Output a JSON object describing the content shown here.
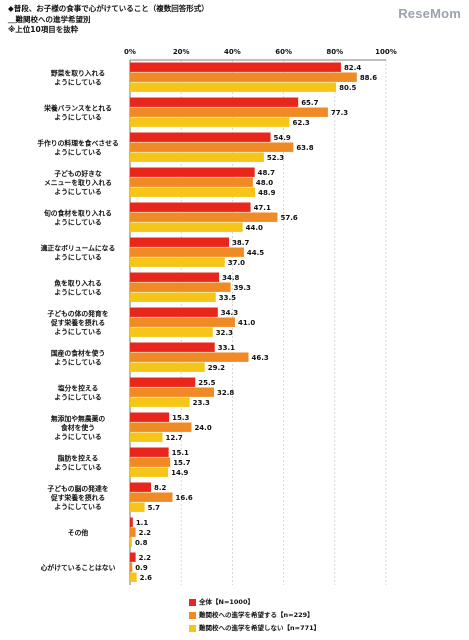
{
  "header": {
    "line1": "◆普段、お子様の食事で心がけていること（複数回答形式）",
    "line2": "＿難関校への進学希望別",
    "line3": "※上位10項目を抜粋"
  },
  "logo": "ReseMom",
  "colors": {
    "all": "#e8261b",
    "wish": "#f08a24",
    "nowish": "#f5c518",
    "grid": "#c8c8c8"
  },
  "chart_data": {
    "type": "bar",
    "orientation": "horizontal",
    "xlim": [
      0,
      100
    ],
    "ticks": [
      "0%",
      "20%",
      "40%",
      "60%",
      "80%",
      "100%"
    ],
    "categories": [
      [
        "野菜を取り入れる",
        "ようにしている"
      ],
      [
        "栄養バランスをとれる",
        "ようにしている"
      ],
      [
        "手作りの料理を食べさせる",
        "ようにしている"
      ],
      [
        "子どもの好きな",
        "メニューを取り入れる",
        "ようにしている"
      ],
      [
        "旬の食材を取り入れる",
        "ようにしている"
      ],
      [
        "適正なボリュームになる",
        "ようにしている"
      ],
      [
        "魚を取り入れる",
        "ようにしている"
      ],
      [
        "子どもの体の発育を",
        "促す栄養を摂れる",
        "ようにしている"
      ],
      [
        "国産の食材を使う",
        "ようにしている"
      ],
      [
        "塩分を控える",
        "ようにしている"
      ],
      [
        "無添加や無農薬の",
        "食材を使う",
        "ようにしている"
      ],
      [
        "脂肪を控える",
        "ようにしている"
      ],
      [
        "子どもの脳の発達を",
        "促す栄養を摂れる",
        "ようにしている"
      ],
      [
        "その他"
      ],
      [
        "心がけていることはない"
      ]
    ],
    "series": [
      {
        "name": "全体【N=1000】",
        "values": [
          82.4,
          65.7,
          54.9,
          48.7,
          47.1,
          38.7,
          34.8,
          34.3,
          33.1,
          25.5,
          15.3,
          15.1,
          8.2,
          1.1,
          2.2
        ]
      },
      {
        "name": "難関校への進学を希望する【n=229】",
        "values": [
          88.6,
          77.3,
          63.8,
          48.0,
          57.6,
          44.5,
          39.3,
          41.0,
          46.3,
          32.8,
          24.0,
          15.7,
          16.6,
          2.2,
          0.9
        ]
      },
      {
        "name": "難関校への進学を希望しない【n=771】",
        "values": [
          80.5,
          62.3,
          52.3,
          48.9,
          44.0,
          37.0,
          33.5,
          32.3,
          29.2,
          23.3,
          12.7,
          14.9,
          5.7,
          0.8,
          2.6
        ]
      }
    ]
  }
}
